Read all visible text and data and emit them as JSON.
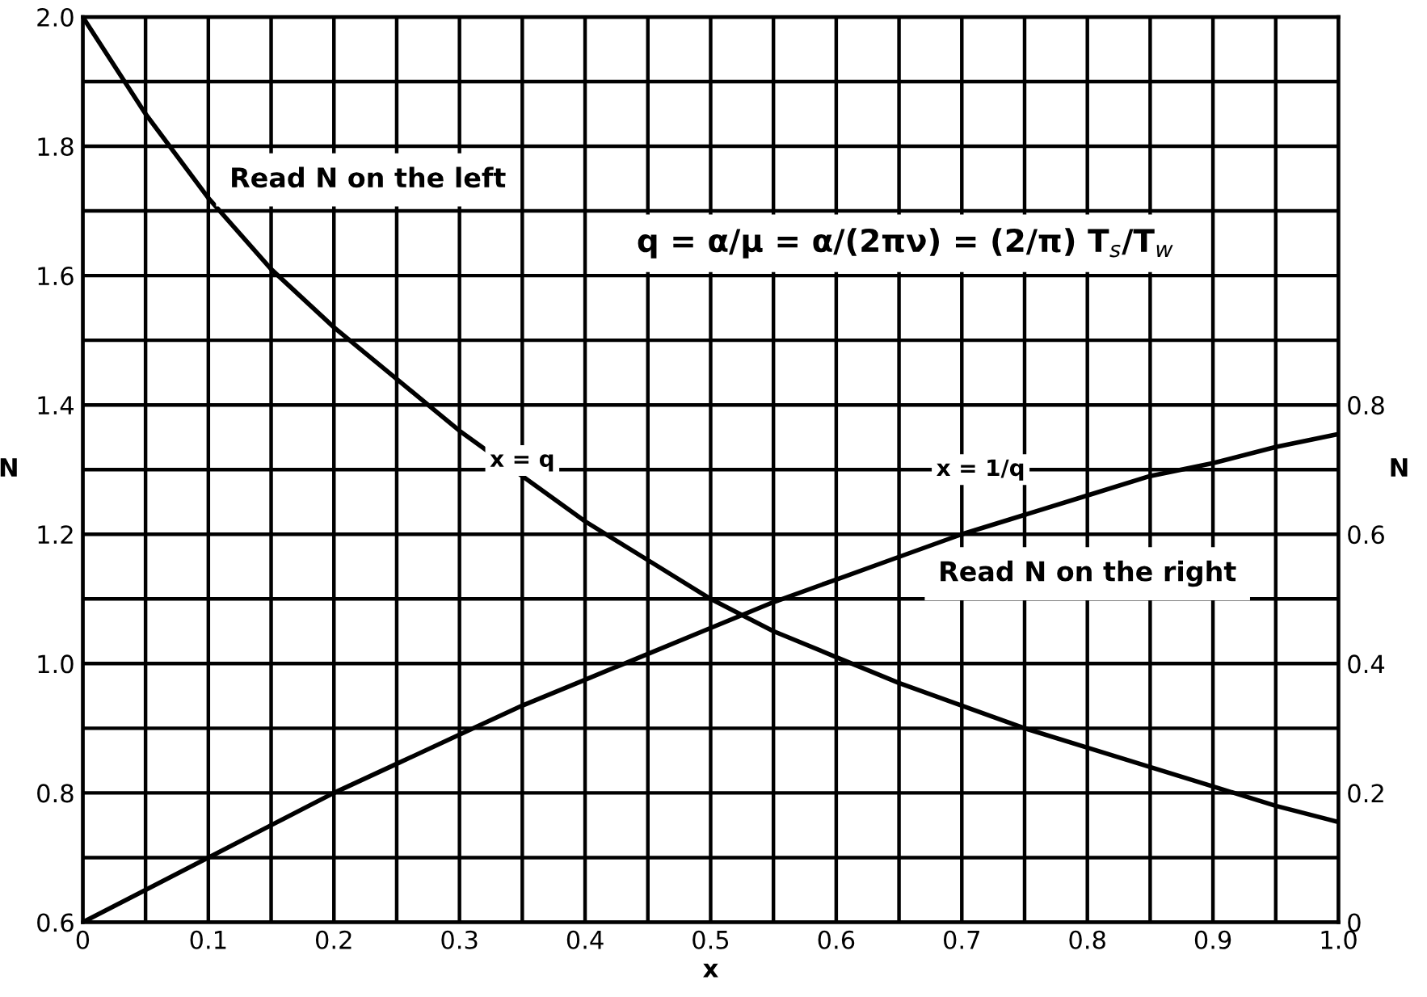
{
  "chart_data": {
    "type": "line",
    "xlabel": "x",
    "ylabel": "N",
    "y2label": "N",
    "x": [
      0,
      0.05,
      0.1,
      0.15,
      0.2,
      0.25,
      0.3,
      0.35,
      0.4,
      0.45,
      0.5,
      0.55,
      0.6,
      0.65,
      0.7,
      0.75,
      0.8,
      0.85,
      0.9,
      0.95,
      1.0
    ],
    "series": [
      {
        "name": "x = q",
        "color": "#000000",
        "values": [
          2.0,
          1.85,
          1.72,
          1.61,
          1.52,
          1.44,
          1.36,
          1.29,
          1.22,
          1.16,
          1.1,
          1.05,
          1.01,
          0.97,
          0.935,
          0.9,
          0.87,
          0.84,
          0.81,
          0.78,
          0.755
        ]
      },
      {
        "name": "x = 1/q",
        "color": "#000000",
        "axis": "y2",
        "values": [
          0,
          0.05,
          0.1,
          0.15,
          0.2,
          0.245,
          0.29,
          0.335,
          0.375,
          0.415,
          0.455,
          0.495,
          0.53,
          0.565,
          0.6,
          0.63,
          0.66,
          0.69,
          0.71,
          0.735,
          0.755
        ]
      }
    ],
    "xlim": [
      0,
      1.0
    ],
    "xticks": [
      {
        "value": 0,
        "label": "0"
      },
      {
        "value": 0.05,
        "label": null
      },
      0.1,
      {
        "value": 0.15,
        "label": null
      },
      0.2,
      {
        "value": 0.25,
        "label": null
      },
      0.3,
      {
        "value": 0.35,
        "label": null
      },
      0.4,
      {
        "value": 0.45,
        "label": null
      },
      0.5,
      {
        "value": 0.55,
        "label": null
      },
      0.6,
      {
        "value": 0.65,
        "label": null
      },
      0.7,
      {
        "value": 0.75,
        "label": null
      },
      0.8,
      {
        "value": 0.85,
        "label": null
      },
      0.9,
      {
        "value": 0.95,
        "label": null
      },
      {
        "value": 1.0,
        "label": "1.0"
      }
    ],
    "ylim": [
      0.6,
      2.0
    ],
    "yticks": [
      0.6,
      {
        "value": 0.7,
        "label": null
      },
      0.8,
      {
        "value": 0.9,
        "label": null
      },
      {
        "value": 1.0,
        "label": "1.0"
      },
      {
        "value": 1.1,
        "label": null
      },
      1.2,
      {
        "value": 1.3,
        "label": null
      },
      1.4,
      {
        "value": 1.5,
        "label": null
      },
      1.6,
      {
        "value": 1.7,
        "label": null
      },
      1.8,
      {
        "value": 1.9,
        "label": null
      },
      {
        "value": 2.0,
        "label": "2.0"
      }
    ],
    "y2lim": [
      0,
      1.4
    ],
    "y2ticks": [
      {
        "value": 0,
        "label": "0"
      },
      0.2,
      0.4,
      0.6,
      0.8
    ],
    "grid": true,
    "marker": "none",
    "line_style": "solid",
    "annotations": [
      "Read N on the left",
      "Read N on the right",
      "q = α/μ = α/(2πν) = (2/π) T$_{s}$/T$_{w}$"
    ]
  }
}
